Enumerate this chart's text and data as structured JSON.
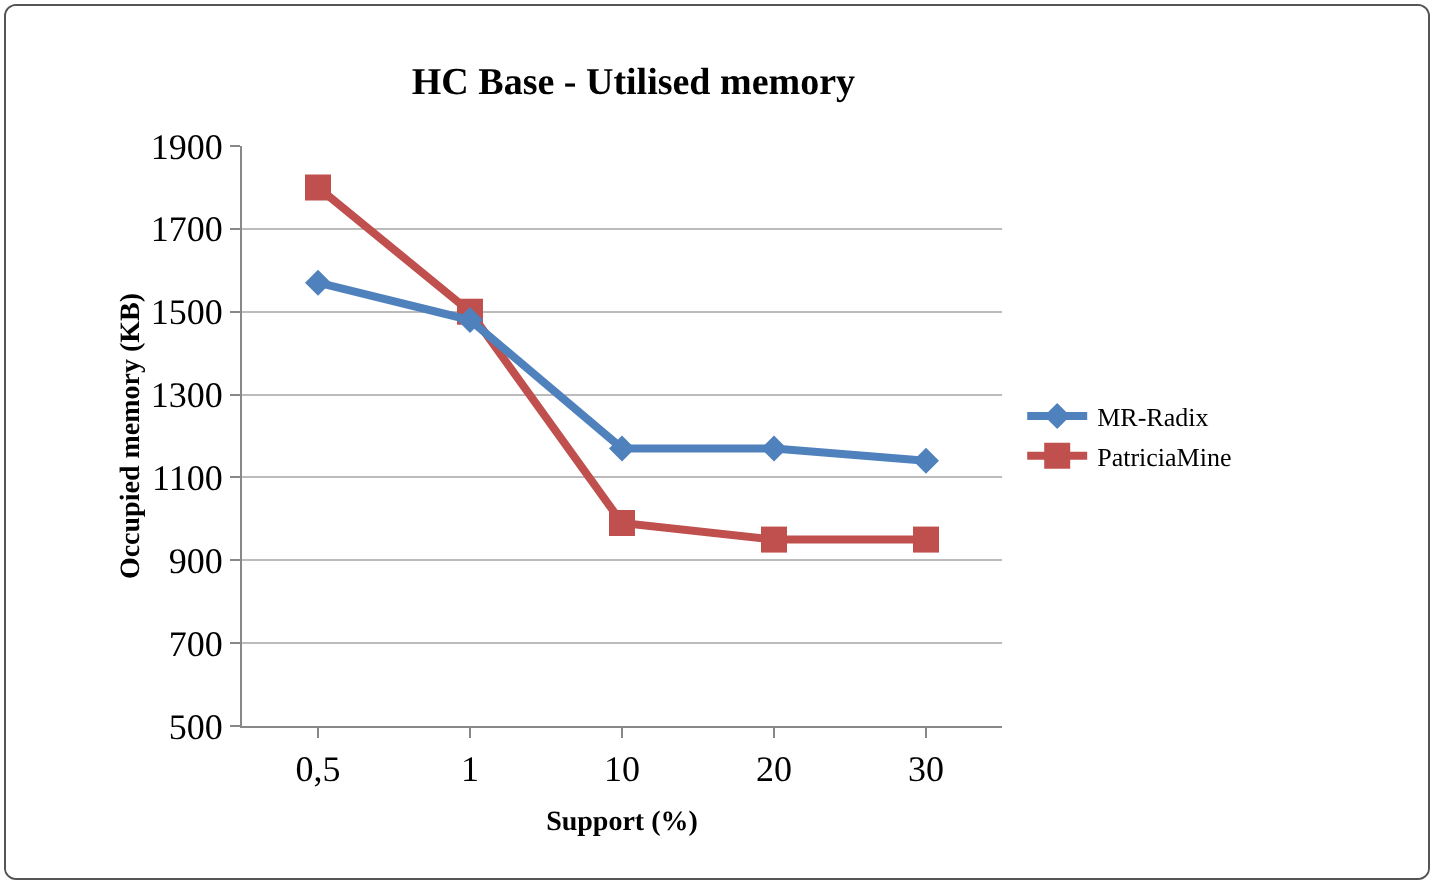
{
  "chart_data": {
    "type": "line",
    "title": "HC Base - Utilised memory",
    "xlabel": "Support (%)",
    "ylabel": "Occupied memory (KB)",
    "categories": [
      "0,5",
      "1",
      "10",
      "20",
      "30"
    ],
    "series": [
      {
        "name": "MR-Radix",
        "color": "#4f81bd",
        "marker": "diamond",
        "values": [
          1570,
          1480,
          1170,
          1170,
          1140
        ]
      },
      {
        "name": "PatriciaMine",
        "color": "#c0504d",
        "marker": "square",
        "values": [
          1800,
          1500,
          990,
          950,
          950
        ]
      }
    ],
    "ylim": [
      500,
      1900
    ],
    "yticks": [
      500,
      700,
      900,
      1100,
      1300,
      1500,
      1700,
      1900
    ],
    "grid": "y",
    "legend": "right",
    "line_style": "solid"
  }
}
